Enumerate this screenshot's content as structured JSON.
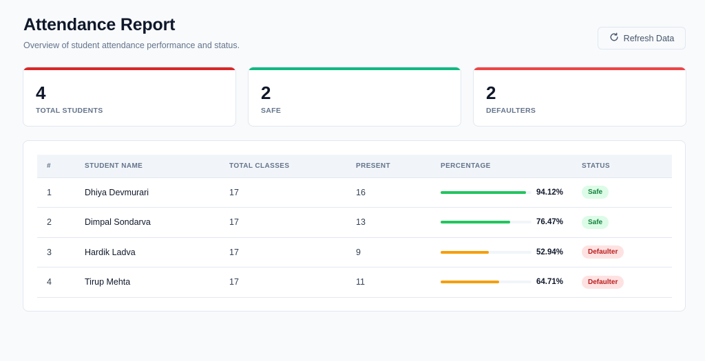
{
  "header": {
    "title": "Attendance Report",
    "subtitle": "Overview of student attendance performance and status."
  },
  "toolbar": {
    "refresh_label": "Refresh Data",
    "refresh_icon": "refresh-icon"
  },
  "stats": [
    {
      "value": "4",
      "label": "TOTAL STUDENTS",
      "accent": "#dc2626"
    },
    {
      "value": "2",
      "label": "SAFE",
      "accent": "#10b981"
    },
    {
      "value": "2",
      "label": "DEFAULTERS",
      "accent": "#ef4444"
    }
  ],
  "table": {
    "headers": [
      "#",
      "STUDENT NAME",
      "TOTAL CLASSES",
      "PRESENT",
      "PERCENTAGE",
      "STATUS"
    ],
    "rows": [
      {
        "num": "1",
        "name": "Dhiya Devmurari",
        "total": "17",
        "present": "16",
        "percentage": "94.12%",
        "pct_value": 94.12,
        "status": "Safe",
        "bar_color": "#22c55e"
      },
      {
        "num": "2",
        "name": "Dimpal Sondarva",
        "total": "17",
        "present": "13",
        "percentage": "76.47%",
        "pct_value": 76.47,
        "status": "Safe",
        "bar_color": "#22c55e"
      },
      {
        "num": "3",
        "name": "Hardik Ladva",
        "total": "17",
        "present": "9",
        "percentage": "52.94%",
        "pct_value": 52.94,
        "status": "Defaulter",
        "bar_color": "#f59e0b"
      },
      {
        "num": "4",
        "name": "Tirup Mehta",
        "total": "17",
        "present": "11",
        "percentage": "64.71%",
        "pct_value": 64.71,
        "status": "Defaulter",
        "bar_color": "#f59e0b"
      }
    ]
  }
}
